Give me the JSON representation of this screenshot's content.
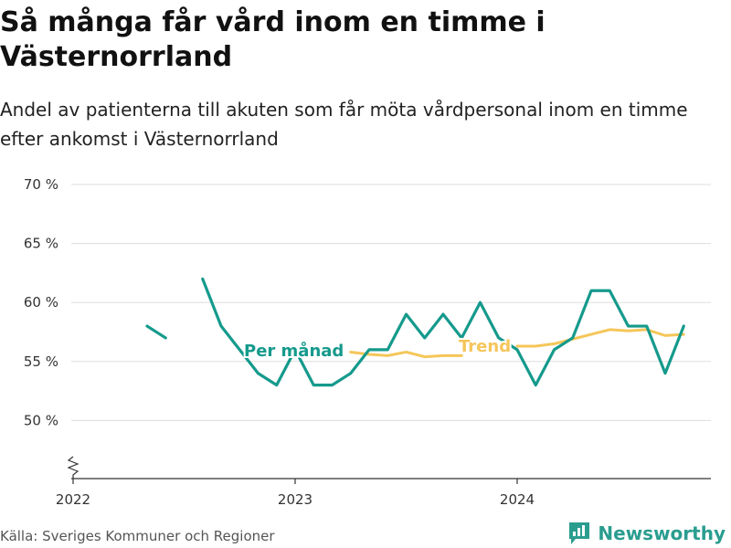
{
  "title": "Så många får vård inom en timme i Västernorrland",
  "subtitle": "Andel av patienterna till akuten som får möta vårdpersonal inom en timme efter ankomst i Västernorrland",
  "source": "Källa: Sveriges Kommuner och Regioner",
  "brand": "Newsworthy",
  "chart_data": {
    "type": "line",
    "ylim": [
      45,
      70
    ],
    "yticks": [
      50,
      55,
      60,
      65,
      70
    ],
    "ytick_labels": [
      "50 %",
      "55 %",
      "60 %",
      "65 %",
      "70 %"
    ],
    "xticks": [
      "2022-01",
      "2023-01",
      "2024-01"
    ],
    "xtick_labels": [
      "2022",
      "2023",
      "2024"
    ],
    "grid": true,
    "colors": {
      "monthly": "#159a8c",
      "trend": "#f5c65a"
    },
    "series": [
      {
        "name": "Per månad",
        "values": [
          [
            "2022-05",
            58
          ],
          [
            "2022-06",
            57
          ],
          [
            "2022-07",
            null
          ],
          [
            "2022-08",
            62
          ],
          [
            "2022-09",
            58
          ],
          [
            "2022-10",
            56
          ],
          [
            "2022-11",
            54
          ],
          [
            "2022-12",
            53
          ],
          [
            "2023-01",
            56
          ],
          [
            "2023-02",
            53
          ],
          [
            "2023-03",
            53
          ],
          [
            "2023-04",
            54
          ],
          [
            "2023-05",
            56
          ],
          [
            "2023-06",
            56
          ],
          [
            "2023-07",
            59
          ],
          [
            "2023-08",
            57
          ],
          [
            "2023-09",
            59
          ],
          [
            "2023-10",
            57
          ],
          [
            "2023-11",
            60
          ],
          [
            "2023-12",
            57
          ],
          [
            "2024-01",
            56
          ],
          [
            "2024-02",
            53
          ],
          [
            "2024-03",
            56
          ],
          [
            "2024-04",
            57
          ],
          [
            "2024-05",
            61
          ],
          [
            "2024-06",
            61
          ],
          [
            "2024-07",
            58
          ],
          [
            "2024-08",
            58
          ],
          [
            "2024-09",
            54
          ],
          [
            "2024-10",
            58
          ]
        ]
      },
      {
        "name": "Trend",
        "values": [
          [
            "2023-04",
            55.8
          ],
          [
            "2023-05",
            55.6
          ],
          [
            "2023-06",
            55.5
          ],
          [
            "2023-07",
            55.8
          ],
          [
            "2023-08",
            55.4
          ],
          [
            "2023-09",
            55.5
          ],
          [
            "2023-10",
            55.5
          ],
          [
            "2023-11",
            null
          ],
          [
            "2023-12",
            null
          ],
          [
            "2024-01",
            56.3
          ],
          [
            "2024-02",
            56.3
          ],
          [
            "2024-03",
            56.5
          ],
          [
            "2024-04",
            56.9
          ],
          [
            "2024-05",
            57.3
          ],
          [
            "2024-06",
            57.7
          ],
          [
            "2024-07",
            57.6
          ],
          [
            "2024-08",
            57.7
          ],
          [
            "2024-09",
            57.2
          ],
          [
            "2024-10",
            57.3
          ]
        ]
      }
    ],
    "annotations": [
      "Per månad",
      "Trend"
    ]
  }
}
